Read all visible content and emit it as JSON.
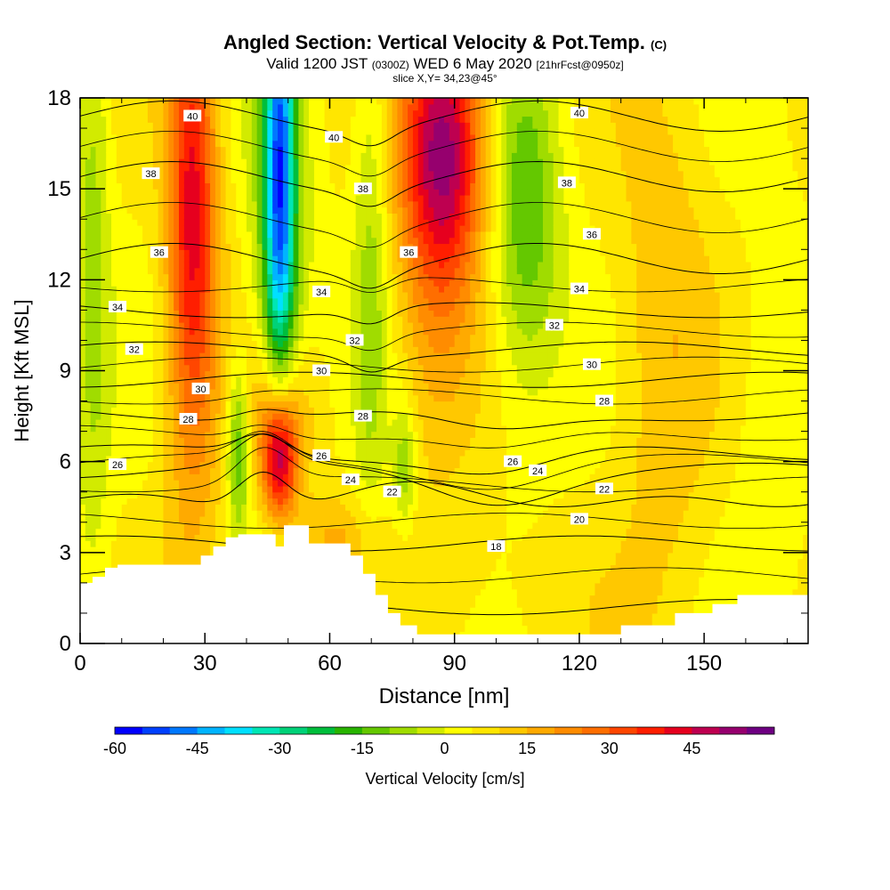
{
  "title": {
    "main": "Angled Section: Vertical Velocity & Pot.Temp.",
    "main_unit": "(C)",
    "valid_prefix": "Valid 1200 JST",
    "valid_utc": "(0300Z)",
    "valid_date": "WED 6 May 2020",
    "forecast": "[21hrFcst@0950z]",
    "slice": "slice X,Y= 34,23@45°"
  },
  "chart_data": {
    "type": "heatmap",
    "xlabel": "Distance [nm]",
    "ylabel": "Height [Kft MSL]",
    "xlim": [
      0,
      175
    ],
    "ylim": [
      0,
      18
    ],
    "x_ticks": [
      0,
      30,
      60,
      90,
      120,
      150
    ],
    "y_ticks": [
      0,
      3,
      6,
      9,
      12,
      15,
      18
    ],
    "colorbar": {
      "label": "Vertical Velocity [cm/s]",
      "range": [
        -60,
        50
      ],
      "step": 5,
      "tick_values": [
        -60,
        -45,
        -30,
        -15,
        0,
        15,
        30,
        45
      ],
      "colors": [
        "#0000ff",
        "#0040ff",
        "#0078ff",
        "#00b4ff",
        "#00e0ff",
        "#00e6b4",
        "#00d278",
        "#00be3c",
        "#28b400",
        "#64c800",
        "#a0dc00",
        "#d2eb00",
        "#ffff00",
        "#ffe600",
        "#ffc800",
        "#ffaa00",
        "#ff8c00",
        "#ff6e00",
        "#ff4600",
        "#ff1e00",
        "#e6001e",
        "#be0050",
        "#96006e",
        "#6e0082"
      ]
    },
    "velocity_features": [
      {
        "x": 27,
        "y": 15,
        "sx": 4,
        "sy": 5,
        "value": 30
      },
      {
        "x": 27,
        "y": 9,
        "sx": 5,
        "sy": 6,
        "value": 12
      },
      {
        "x": 48,
        "y": 6,
        "sx": 3,
        "sy": 1.5,
        "value": 45
      },
      {
        "x": 48,
        "y": 7.5,
        "sx": 6,
        "sy": 2.2,
        "value": 20
      },
      {
        "x": 48,
        "y": 15.5,
        "sx": 2.5,
        "sy": 5,
        "value": -45
      },
      {
        "x": 48,
        "y": 11,
        "sx": 5,
        "sy": 7,
        "value": -18
      },
      {
        "x": 38,
        "y": 6.5,
        "sx": 2,
        "sy": 2,
        "value": -22
      },
      {
        "x": 70,
        "y": 13,
        "sx": 3,
        "sy": 7,
        "value": -12
      },
      {
        "x": 78,
        "y": 5.8,
        "sx": 2,
        "sy": 1.5,
        "value": -15
      },
      {
        "x": 88,
        "y": 16.5,
        "sx": 7,
        "sy": 3,
        "value": 38
      },
      {
        "x": 85,
        "y": 13,
        "sx": 7,
        "sy": 5,
        "value": 15
      },
      {
        "x": 107,
        "y": 14,
        "sx": 6,
        "sy": 4,
        "value": -20
      },
      {
        "x": 3,
        "y": 13,
        "sx": 3,
        "sy": 8,
        "value": -12
      },
      {
        "x": 140,
        "y": 10,
        "sx": 8,
        "sy": 6,
        "value": 10
      },
      {
        "x": 100,
        "y": 1.5,
        "sx": 20,
        "sy": 2,
        "value": 3
      },
      {
        "x": 165,
        "y": 8,
        "sx": 6,
        "sy": 4,
        "value": -5
      },
      {
        "x": 60,
        "y": 3.5,
        "sx": 8,
        "sy": 1,
        "value": 10
      }
    ],
    "theta_contours": [
      {
        "value": 18,
        "y": 1.2
      },
      {
        "value": 20,
        "y": 3.3
      },
      {
        "value": 22,
        "y": 4.8
      },
      {
        "value": 24,
        "y": 5.7
      },
      {
        "value": 26,
        "y": 6.3
      },
      {
        "value": 28,
        "y": 7.6
      },
      {
        "value": 30,
        "y": 8.7
      },
      {
        "value": 32,
        "y": 9.7
      },
      {
        "value": 34,
        "y": 11.0
      },
      {
        "value": 36,
        "y": 12.7
      },
      {
        "value": 38,
        "y": 15.4
      },
      {
        "value": 40,
        "y": 17.4
      }
    ],
    "contour_labels": [
      {
        "text": "40",
        "x": 27,
        "y": 17.4
      },
      {
        "text": "40",
        "x": 61,
        "y": 16.7
      },
      {
        "text": "40",
        "x": 120,
        "y": 17.5
      },
      {
        "text": "38",
        "x": 17,
        "y": 15.5
      },
      {
        "text": "38",
        "x": 68,
        "y": 15.0
      },
      {
        "text": "38",
        "x": 117,
        "y": 15.2
      },
      {
        "text": "36",
        "x": 19,
        "y": 12.9
      },
      {
        "text": "36",
        "x": 79,
        "y": 12.9
      },
      {
        "text": "36",
        "x": 123,
        "y": 13.5
      },
      {
        "text": "34",
        "x": 9,
        "y": 11.1
      },
      {
        "text": "34",
        "x": 58,
        "y": 11.6
      },
      {
        "text": "34",
        "x": 120,
        "y": 11.7
      },
      {
        "text": "32",
        "x": 13,
        "y": 9.7
      },
      {
        "text": "32",
        "x": 66,
        "y": 10.0
      },
      {
        "text": "32",
        "x": 114,
        "y": 10.5
      },
      {
        "text": "30",
        "x": 29,
        "y": 8.4
      },
      {
        "text": "30",
        "x": 58,
        "y": 9.0
      },
      {
        "text": "30",
        "x": 123,
        "y": 9.2
      },
      {
        "text": "28",
        "x": 26,
        "y": 7.4
      },
      {
        "text": "28",
        "x": 68,
        "y": 7.5
      },
      {
        "text": "28",
        "x": 126,
        "y": 8.0
      },
      {
        "text": "26",
        "x": 9,
        "y": 5.9
      },
      {
        "text": "26",
        "x": 58,
        "y": 6.2
      },
      {
        "text": "26",
        "x": 104,
        "y": 6.0
      },
      {
        "text": "24",
        "x": 65,
        "y": 5.4
      },
      {
        "text": "24",
        "x": 110,
        "y": 5.7
      },
      {
        "text": "22",
        "x": 75,
        "y": 5.0
      },
      {
        "text": "22",
        "x": 126,
        "y": 5.1
      },
      {
        "text": "20",
        "x": 120,
        "y": 4.1
      },
      {
        "text": "18",
        "x": 100,
        "y": 3.2
      }
    ],
    "terrain": [
      [
        0,
        2.0
      ],
      [
        3,
        2.0
      ],
      [
        3,
        2.2
      ],
      [
        6,
        2.2
      ],
      [
        6,
        2.5
      ],
      [
        9,
        2.5
      ],
      [
        9,
        2.6
      ],
      [
        29,
        2.6
      ],
      [
        29,
        2.9
      ],
      [
        32,
        2.9
      ],
      [
        32,
        3.2
      ],
      [
        35,
        3.2
      ],
      [
        35,
        3.5
      ],
      [
        38,
        3.5
      ],
      [
        38,
        3.6
      ],
      [
        47,
        3.6
      ],
      [
        47,
        3.2
      ],
      [
        49,
        3.2
      ],
      [
        49,
        3.9
      ],
      [
        55,
        3.9
      ],
      [
        55,
        3.3
      ],
      [
        65,
        3.3
      ],
      [
        65,
        2.9
      ],
      [
        68,
        2.9
      ],
      [
        68,
        2.3
      ],
      [
        71,
        2.3
      ],
      [
        71,
        1.6
      ],
      [
        74,
        1.6
      ],
      [
        74,
        1.0
      ],
      [
        77,
        1.0
      ],
      [
        77,
        0.6
      ],
      [
        81,
        0.6
      ],
      [
        81,
        0.3
      ],
      [
        130,
        0.3
      ],
      [
        130,
        0.6
      ],
      [
        143,
        0.6
      ],
      [
        143,
        1.0
      ],
      [
        152,
        1.0
      ],
      [
        152,
        1.3
      ],
      [
        158,
        1.3
      ],
      [
        158,
        1.6
      ],
      [
        175,
        1.6
      ]
    ]
  }
}
